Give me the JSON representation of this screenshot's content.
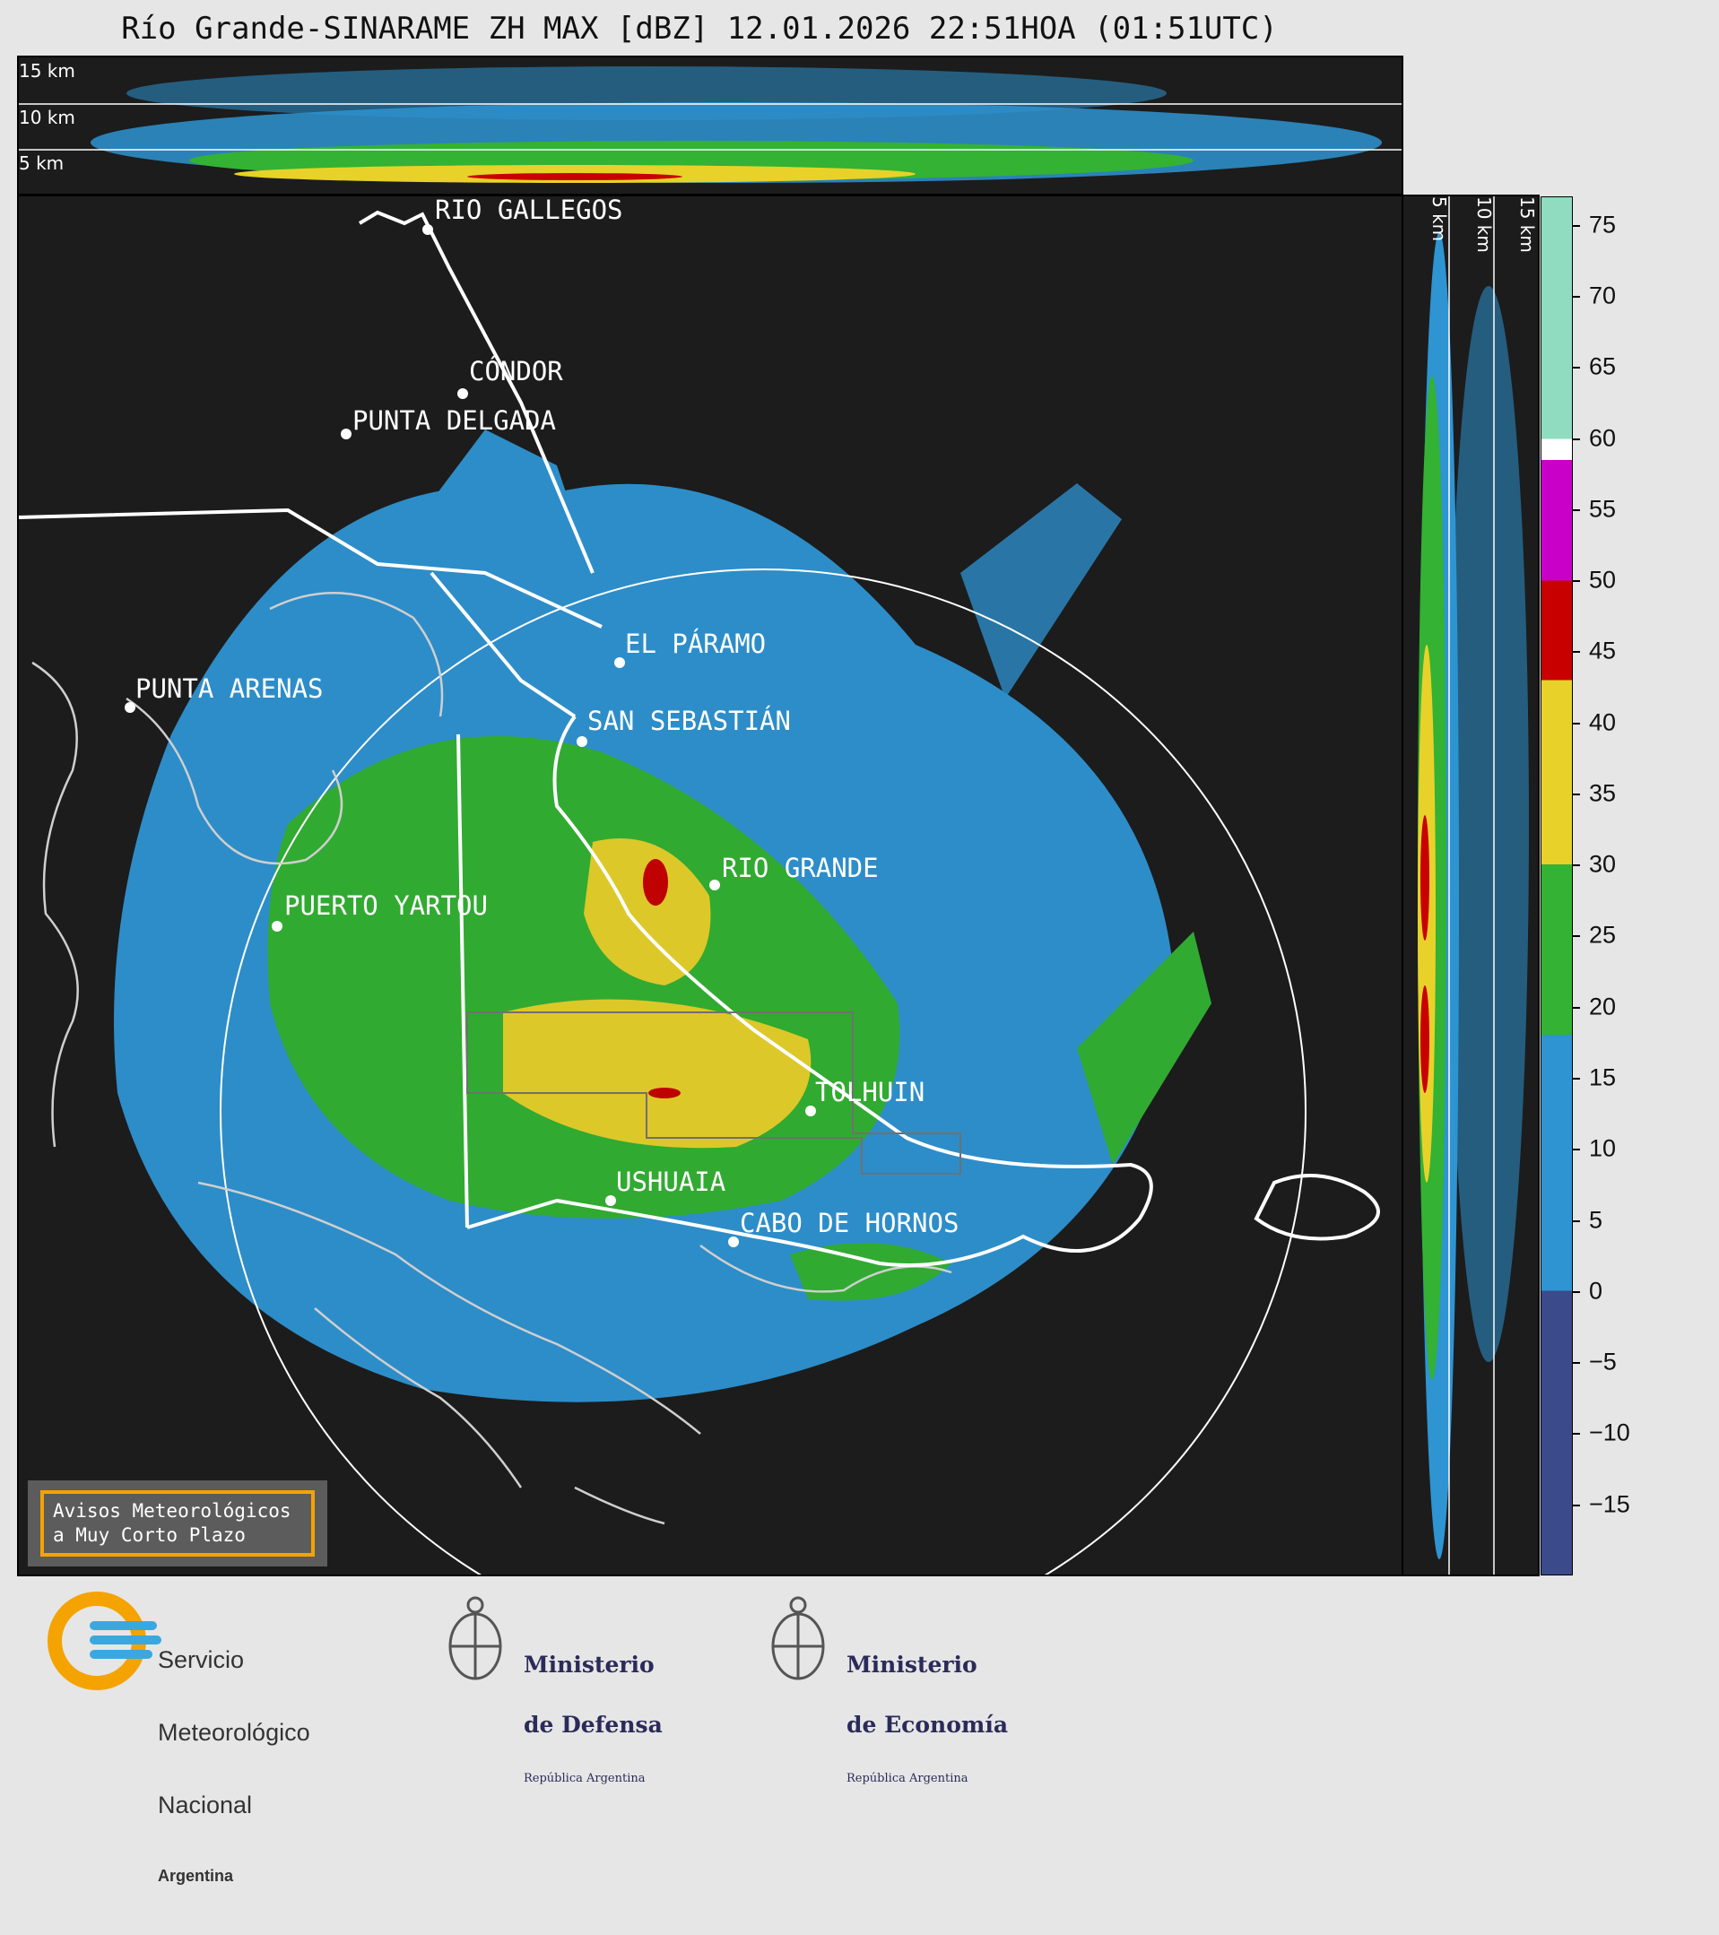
{
  "title": "Río Grande-SINARAME ZH MAX [dBZ] 12.01.2026 22:51HOA (01:51UTC)",
  "height_labels": [
    "15 km",
    "10 km",
    "5 km"
  ],
  "cities": [
    {
      "name": "RIO GALLEGOS"
    },
    {
      "name": "CÓNDOR"
    },
    {
      "name": "PUNTA DELGADA"
    },
    {
      "name": "EL PÁRAMO"
    },
    {
      "name": "PUNTA ARENAS"
    },
    {
      "name": "SAN SEBASTIÁN"
    },
    {
      "name": "RIO GRANDE"
    },
    {
      "name": "PUERTO YARTOU"
    },
    {
      "name": "TOLHUIN"
    },
    {
      "name": "USHUAIA"
    },
    {
      "name": "CABO DE HORNOS"
    }
  ],
  "notice": {
    "line1": "Avisos Meteorológicos",
    "line2": "a Muy Corto Plazo"
  },
  "colorbar": {
    "unit": "dBZ",
    "ticks": [
      "75",
      "70",
      "65",
      "60",
      "55",
      "50",
      "45",
      "40",
      "35",
      "30",
      "25",
      "20",
      "15",
      "10",
      "5",
      "0",
      "−5",
      "−10",
      "−15"
    ],
    "tick_values": [
      75,
      70,
      65,
      60,
      55,
      50,
      45,
      40,
      35,
      30,
      25,
      20,
      15,
      10,
      5,
      0,
      -5,
      -10,
      -15
    ],
    "range": [
      -20,
      77
    ],
    "colors": [
      {
        "from": 60,
        "to": 77,
        "color": "#8fdcc0"
      },
      {
        "from": 58.5,
        "to": 60,
        "color": "#ffffff"
      },
      {
        "from": 50,
        "to": 58.5,
        "color": "#c800c8"
      },
      {
        "from": 43,
        "to": 50,
        "color": "#c80000"
      },
      {
        "from": 30,
        "to": 43,
        "color": "#e8d22a"
      },
      {
        "from": 18,
        "to": 30,
        "color": "#33b233"
      },
      {
        "from": 0,
        "to": 18,
        "color": "#2e94d2"
      },
      {
        "from": -20,
        "to": 0,
        "color": "#3a4a8a"
      }
    ]
  },
  "logos": {
    "smn": {
      "line1": "Servicio",
      "line2": "Meteorológico",
      "line3": "Nacional",
      "line4": "Argentina"
    },
    "defensa": {
      "line1": "Ministerio",
      "line2": "de Defensa",
      "line3": "República Argentina"
    },
    "economia": {
      "line1": "Ministerio",
      "line2": "de Economía",
      "line3": "República Argentina"
    }
  }
}
